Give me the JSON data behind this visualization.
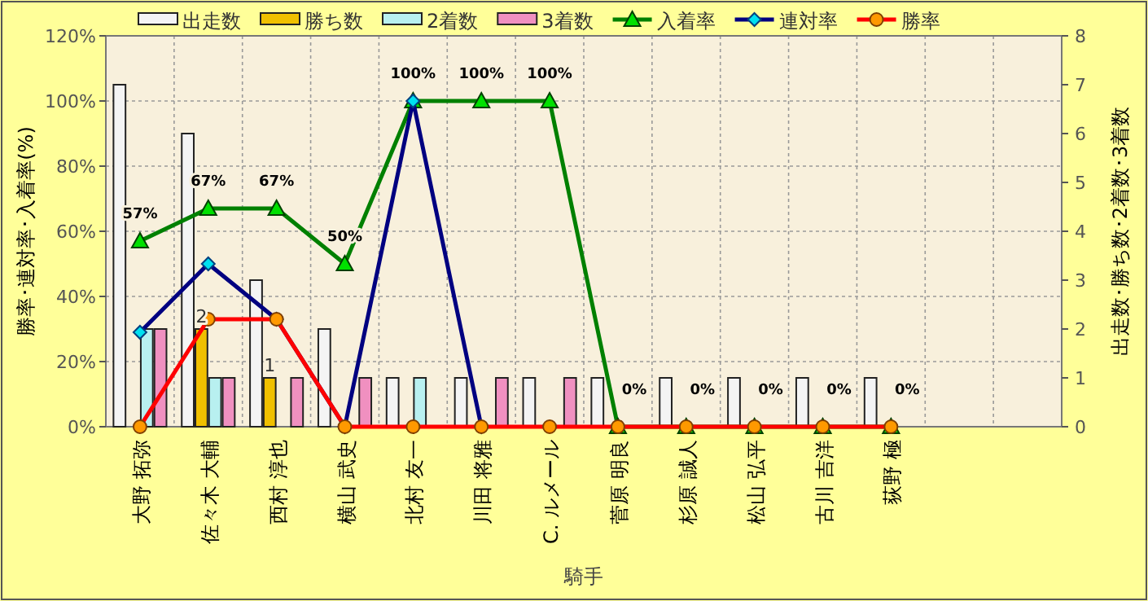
{
  "chart_data": {
    "type": "bar",
    "xlabel": "騎手",
    "ylabel": "勝率･連対率･入着率(%)",
    "y2label": "出走数･勝ち数･2着数･3着数",
    "categories": [
      "大野 拓弥",
      "佐々木 大輔",
      "西村 淳也",
      "横山 武史",
      "北村 友一",
      "川田 将雅",
      "C. ルメール",
      "菅原 明良",
      "杉原 誠人",
      "松山 弘平",
      "古川 吉洋",
      "荻野 極",
      null,
      null
    ],
    "series": [
      {
        "name": "出走数",
        "axis": "y2",
        "color": "#f4f4f4",
        "values": [
          7,
          6,
          3,
          2,
          1,
          1,
          1,
          1,
          1,
          1,
          1,
          1,
          null,
          null
        ]
      },
      {
        "name": "勝ち数",
        "axis": "y2",
        "color": "#f0c000",
        "values": [
          0,
          2,
          1,
          0,
          0,
          0,
          0,
          0,
          0,
          0,
          0,
          0,
          null,
          null
        ],
        "value_labels": [
          null,
          "2",
          "1",
          null,
          null,
          null,
          null,
          null,
          null,
          null,
          null,
          null,
          null,
          null
        ]
      },
      {
        "name": "2着数",
        "axis": "y2",
        "color": "#b8f0f0",
        "values": [
          2,
          1,
          0,
          0,
          1,
          0,
          0,
          0,
          0,
          0,
          0,
          0,
          null,
          null
        ]
      },
      {
        "name": "3着数",
        "axis": "y2",
        "color": "#f090c0",
        "values": [
          2,
          1,
          1,
          1,
          0,
          1,
          1,
          0,
          0,
          0,
          0,
          0,
          null,
          null
        ]
      },
      {
        "name": "入着率",
        "type": "line",
        "axis": "y",
        "color": "#008000",
        "marker": "triangle",
        "values": [
          57,
          67,
          67,
          50,
          100,
          100,
          100,
          0,
          0,
          0,
          0,
          0,
          null,
          null
        ],
        "value_labels": [
          "57%",
          "67%",
          "67%",
          "50%",
          "100%",
          "100%",
          "100%",
          "0%",
          "0%",
          "0%",
          "0%",
          "0%",
          null,
          null
        ]
      },
      {
        "name": "連対率",
        "type": "line",
        "axis": "y",
        "color": "#000080",
        "marker": "diamond",
        "values": [
          29,
          50,
          33,
          0,
          100,
          0,
          null,
          null,
          null,
          null,
          null,
          null,
          null,
          null
        ]
      },
      {
        "name": "勝率",
        "type": "line",
        "axis": "y",
        "color": "#ff0000",
        "marker": "circle",
        "values": [
          0,
          33,
          33,
          0,
          0,
          0,
          0,
          0,
          0,
          0,
          0,
          0,
          null,
          null
        ]
      }
    ],
    "ylim": [
      0,
      120
    ],
    "yticks": [
      {
        "value": 0,
        "label": "0%"
      },
      {
        "value": 20,
        "label": "20%"
      },
      {
        "value": 40,
        "label": "40%"
      },
      {
        "value": 60,
        "label": "60%"
      },
      {
        "value": 80,
        "label": "80%"
      },
      {
        "value": 100,
        "label": "100%"
      },
      {
        "value": 120,
        "label": "120%"
      }
    ],
    "y2lim": [
      0,
      8
    ],
    "y2ticks": [
      0,
      1,
      2,
      3,
      4,
      5,
      6,
      7,
      8
    ],
    "grid": true,
    "legend": "top"
  }
}
